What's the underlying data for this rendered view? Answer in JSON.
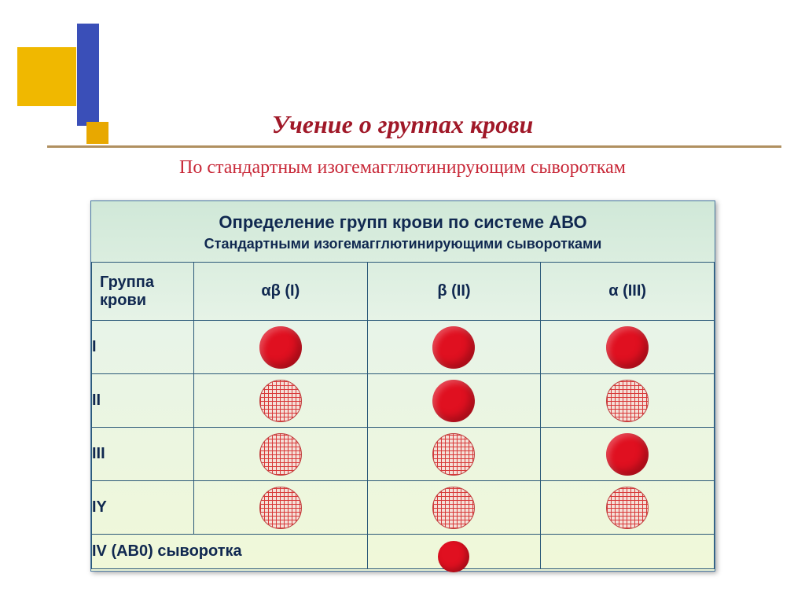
{
  "title": "Учение о группах крови",
  "subtitle": "По стандартным изогемагглютинирующим сывороткам",
  "panel": {
    "title": "Определение групп крови по системе АВО",
    "subtitle": "Стандартными изогемагглютинирующими сыворотками",
    "row_header": "Группа крови",
    "columns": [
      "αβ (I)",
      "β (II)",
      "α (III)"
    ],
    "rows": [
      {
        "label": "I",
        "cells": [
          "solid",
          "solid",
          "solid"
        ]
      },
      {
        "label": "II",
        "cells": [
          "hatched",
          "solid",
          "hatched"
        ]
      },
      {
        "label": "III",
        "cells": [
          "hatched",
          "hatched",
          "solid"
        ]
      },
      {
        "label": "IY",
        "cells": [
          "hatched",
          "hatched",
          "hatched"
        ]
      }
    ],
    "footer_label": "IV (AB0) сыворотка",
    "footer_marker_col": 1,
    "footer_marker": "solid"
  },
  "style": {
    "title_color": "#a01828",
    "subtitle_color": "#c82838",
    "panel_border": "#4878a0",
    "cell_border": "#2a5878",
    "text_color": "#102850",
    "solid_color": "#e01020",
    "hatched_line": "#d83838",
    "hatched_bg": "#f4e0d8",
    "deco_yellow": "#f0b800",
    "deco_yellow2": "#e8a800",
    "deco_blue": "#3a4fb8",
    "hline_color": "#b09060",
    "panel_bg_top": "#d0e8d8",
    "panel_bg_mid": "#e8f4e8",
    "panel_bg_bottom": "#f0f8d8",
    "circle_size": 54,
    "title_fontsize": 32,
    "subtitle_fontsize": 24,
    "panel_title_fontsize": 22,
    "panel_sub_fontsize": 18,
    "cell_fontsize": 20
  }
}
